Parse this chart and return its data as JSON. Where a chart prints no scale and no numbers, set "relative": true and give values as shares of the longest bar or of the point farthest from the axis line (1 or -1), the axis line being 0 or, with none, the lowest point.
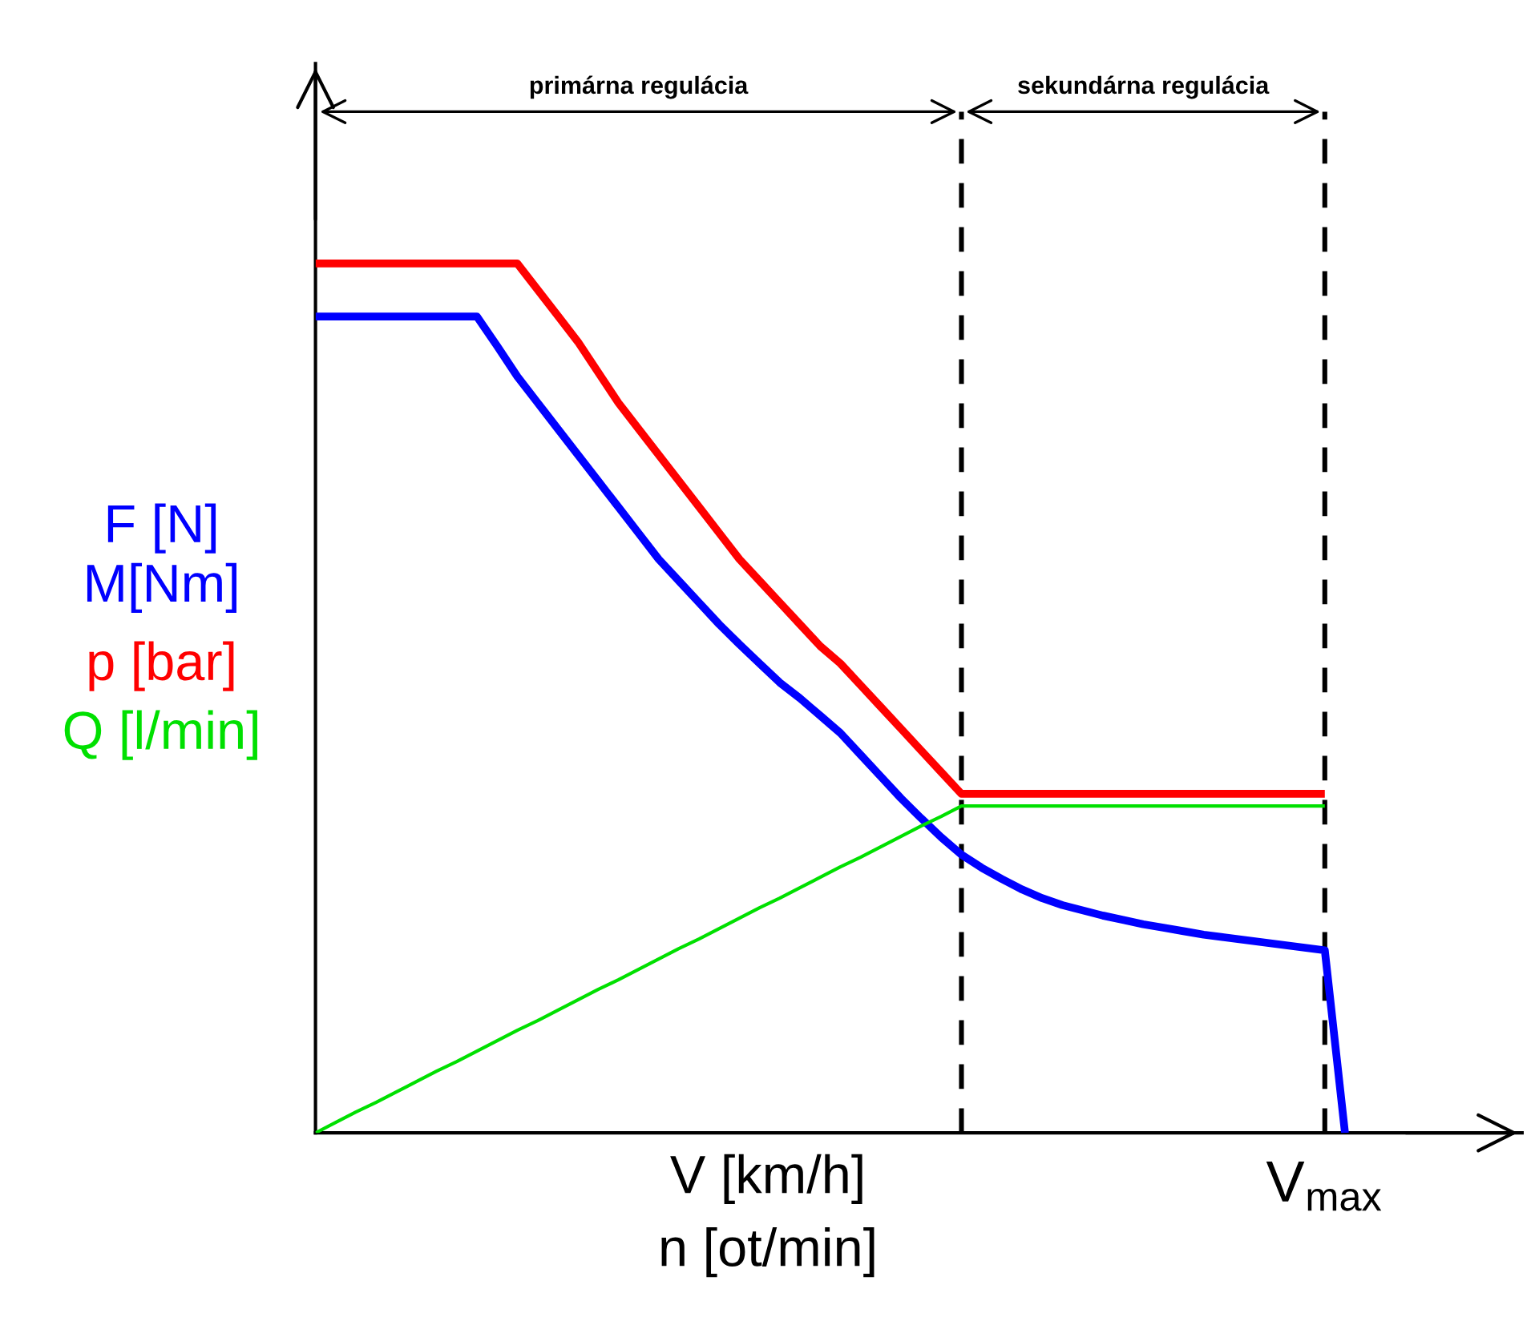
{
  "chart_data": {
    "type": "line",
    "relative": true,
    "xlabel": "V [km/h]\nn [ot/min]",
    "annotations": [
      "primárna regulácia",
      "sekundárna regulácia",
      "V$_{max}$"
    ],
    "categories": [
      null,
      null,
      null,
      null,
      null,
      null,
      null,
      null,
      null,
      null,
      null,
      null,
      null,
      null,
      null,
      null,
      null,
      null,
      null,
      null,
      null,
      null,
      null,
      null,
      null,
      null,
      null,
      null,
      null,
      null,
      null,
      null,
      null,
      null,
      null,
      null,
      null,
      null,
      null,
      null,
      null,
      null,
      null,
      null,
      null,
      null,
      null,
      null,
      null,
      null,
      null,
      null
    ],
    "series": [
      {
        "name": "F [N]\nM[Nm]",
        "color": "#0000ff",
        "values": [
          0.939,
          0.939,
          0.939,
          0.939,
          0.939,
          0.939,
          0.939,
          0.939,
          0.939,
          0.905,
          0.87,
          0.84,
          0.81,
          0.78,
          0.75,
          0.72,
          0.69,
          0.66,
          0.635,
          0.61,
          0.585,
          0.562,
          0.54,
          0.518,
          0.5,
          0.48,
          0.46,
          0.435,
          0.41,
          0.385,
          0.362,
          0.34,
          0.32,
          0.305,
          0.292,
          0.28,
          0.27,
          0.262,
          0.256,
          0.25,
          0.245,
          0.24,
          0.236,
          0.232,
          0.228,
          0.225,
          0.222,
          0.219,
          0.216,
          0.213,
          0.21,
          0
        ]
      },
      {
        "name": "p [bar]",
        "color": "#ff0000",
        "values": [
          1,
          1,
          1,
          1,
          1,
          1,
          1,
          1,
          1,
          1,
          1,
          0.97,
          0.94,
          0.91,
          0.875,
          0.84,
          0.81,
          0.78,
          0.75,
          0.72,
          0.69,
          0.66,
          0.635,
          0.61,
          0.585,
          0.56,
          0.54,
          0.515,
          0.49,
          0.465,
          0.44,
          0.415,
          0.39,
          0.39,
          0.39,
          0.39,
          0.39,
          0.39,
          0.39,
          0.39,
          0.39,
          0.39,
          0.39,
          0.39,
          0.39,
          0.39,
          0.39,
          0.39,
          0.39,
          0.39,
          0.39,
          null
        ]
      },
      {
        "name": "Q [l/min]",
        "color": "#00e000",
        "values": [
          0,
          0.012,
          0.024,
          0.035,
          0.047,
          0.059,
          0.071,
          0.082,
          0.094,
          0.106,
          0.118,
          0.129,
          0.141,
          0.153,
          0.165,
          0.176,
          0.188,
          0.2,
          0.212,
          0.223,
          0.235,
          0.247,
          0.259,
          0.27,
          0.282,
          0.294,
          0.306,
          0.317,
          0.329,
          0.341,
          0.353,
          0.364,
          0.376,
          0.376,
          0.376,
          0.376,
          0.376,
          0.376,
          0.376,
          0.376,
          0.376,
          0.376,
          0.376,
          0.376,
          0.376,
          0.376,
          0.376,
          0.376,
          0.376,
          0.376,
          0.376,
          null
        ]
      }
    ]
  }
}
